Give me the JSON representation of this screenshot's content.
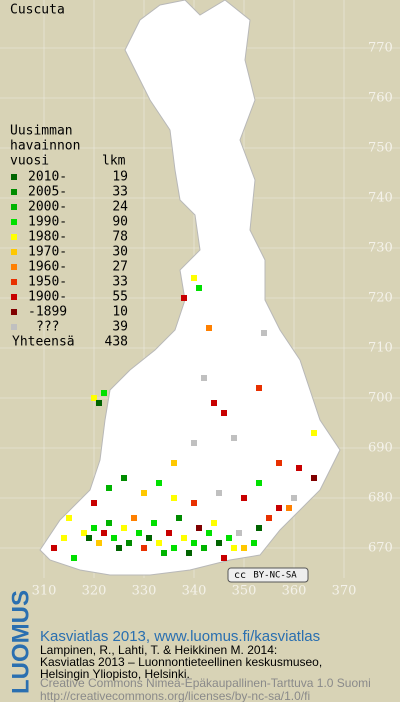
{
  "title": "Cuscuta",
  "legend": {
    "header": [
      "Uusimman",
      "havainnon",
      "vuosi"
    ],
    "count_header": "lkm",
    "rows": [
      {
        "label": "2010-",
        "count": 19,
        "color": "#006400"
      },
      {
        "label": "2005-",
        "count": 33,
        "color": "#008c00"
      },
      {
        "label": "2000-",
        "count": 24,
        "color": "#00b400"
      },
      {
        "label": "1990-",
        "count": 90,
        "color": "#00e000"
      },
      {
        "label": "1980-",
        "count": 78,
        "color": "#ffff00"
      },
      {
        "label": "1970-",
        "count": 30,
        "color": "#ffc800"
      },
      {
        "label": "1960-",
        "count": 27,
        "color": "#ff8000"
      },
      {
        "label": "1950-",
        "count": 33,
        "color": "#e83000"
      },
      {
        "label": "1900-",
        "count": 55,
        "color": "#c80000"
      },
      {
        "label": "-1899",
        "count": 10,
        "color": "#800000"
      },
      {
        "label": "???",
        "count": 39,
        "color": "#c0c0c0"
      }
    ],
    "total_label": "Yhteensä",
    "total": 438
  },
  "axes": {
    "x_ticks": [
      310,
      320,
      330,
      340,
      350,
      360,
      370
    ],
    "y_ticks": [
      670,
      680,
      690,
      700,
      710,
      720,
      730,
      740,
      750,
      760,
      770
    ]
  },
  "occurrences": [
    [
      318,
      673,
      4
    ],
    [
      319,
      672,
      0
    ],
    [
      320,
      674,
      3
    ],
    [
      321,
      671,
      5
    ],
    [
      322,
      673,
      8
    ],
    [
      323,
      675,
      2
    ],
    [
      324,
      672,
      3
    ],
    [
      325,
      670,
      0
    ],
    [
      326,
      674,
      4
    ],
    [
      327,
      671,
      1
    ],
    [
      328,
      676,
      6
    ],
    [
      329,
      673,
      3
    ],
    [
      330,
      670,
      7
    ],
    [
      331,
      672,
      0
    ],
    [
      332,
      675,
      3
    ],
    [
      333,
      671,
      4
    ],
    [
      334,
      669,
      2
    ],
    [
      335,
      673,
      8
    ],
    [
      336,
      670,
      3
    ],
    [
      337,
      676,
      1
    ],
    [
      338,
      672,
      4
    ],
    [
      339,
      669,
      0
    ],
    [
      340,
      671,
      3
    ],
    [
      341,
      674,
      9
    ],
    [
      342,
      670,
      2
    ],
    [
      343,
      673,
      3
    ],
    [
      344,
      675,
      4
    ],
    [
      345,
      671,
      0
    ],
    [
      346,
      668,
      8
    ],
    [
      347,
      672,
      3
    ],
    [
      348,
      670,
      4
    ],
    [
      349,
      673,
      10
    ],
    [
      350,
      670,
      5
    ],
    [
      352,
      671,
      3
    ],
    [
      353,
      674,
      0
    ],
    [
      355,
      676,
      7
    ],
    [
      357,
      678,
      8
    ],
    [
      359,
      678,
      6
    ],
    [
      360,
      680,
      10
    ],
    [
      314,
      672,
      4
    ],
    [
      312,
      670,
      8
    ],
    [
      316,
      668,
      3
    ],
    [
      315,
      676,
      4
    ],
    [
      320,
      679,
      8
    ],
    [
      323,
      682,
      2
    ],
    [
      326,
      684,
      1
    ],
    [
      330,
      681,
      5
    ],
    [
      333,
      683,
      3
    ],
    [
      336,
      680,
      4
    ],
    [
      340,
      679,
      7
    ],
    [
      345,
      681,
      10
    ],
    [
      350,
      680,
      8
    ],
    [
      353,
      683,
      3
    ],
    [
      357,
      687,
      7
    ],
    [
      361,
      686,
      8
    ],
    [
      364,
      684,
      9
    ],
    [
      322,
      701,
      3
    ],
    [
      320,
      700,
      4
    ],
    [
      321,
      699,
      0
    ],
    [
      344,
      699,
      8
    ],
    [
      346,
      697,
      8
    ],
    [
      342,
      704,
      10
    ],
    [
      353,
      702,
      7
    ],
    [
      343,
      714,
      6
    ],
    [
      341,
      722,
      3
    ],
    [
      340,
      724,
      4
    ],
    [
      338,
      720,
      8
    ],
    [
      354,
      713,
      10
    ],
    [
      364,
      693,
      4
    ],
    [
      348,
      692,
      10
    ],
    [
      340,
      691,
      10
    ],
    [
      336,
      687,
      5
    ]
  ],
  "badge": [
    "cc",
    "BY-NC-SA"
  ],
  "footer": {
    "logo": "LUOMUS",
    "link": "Kasviatlas 2013, www.luomus.fi/kasviatlas",
    "citation": [
      "Lampinen, R., Lahti, T. & Heikkinen M. 2014:",
      "Kasviatlas 2013 – Luonnontieteellinen keskusmuseo,",
      "Helsingin Yliopisto, Helsinki."
    ],
    "license": [
      "Creative Commons Nimeä-Epäkaupallinen-Tarttuva 1.0 Suomi",
      "http://creativecommons.org/licenses/by-nc-sa/1.0/fi"
    ]
  }
}
